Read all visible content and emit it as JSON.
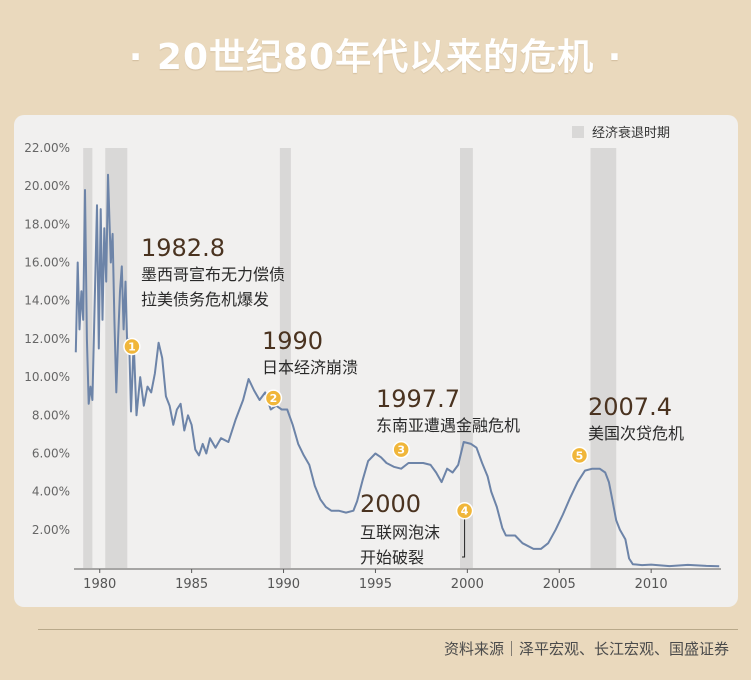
{
  "title": "· 20世纪80年代以来的危机 ·",
  "source": "资料来源｜泽平宏观、长江宏观、国盛证券",
  "colors": {
    "background": "#ead9bd",
    "panel": "#f1f0ef",
    "line": "#6d84a8",
    "recession": "#d9d8d7",
    "marker": "#f0b63a",
    "label": "#4a3320"
  },
  "chart_data": {
    "type": "line",
    "title": "",
    "xlabel": "",
    "ylabel": "",
    "xlim": [
      1978.6,
      2013.8
    ],
    "ylim": [
      0,
      22
    ],
    "y_ticks": [
      "2.00%",
      "4.00%",
      "6.00%",
      "8.00%",
      "10.00%",
      "12.00%",
      "14.00%",
      "16.00%",
      "18.00%",
      "20.00%",
      "22.00%"
    ],
    "x_ticks": [
      "1980",
      "1985",
      "1990",
      "1995",
      "2000",
      "2005",
      "2010"
    ],
    "grid": false,
    "legend": {
      "label": "经济衰退时期",
      "position": "top-right"
    },
    "recessions": [
      [
        1979.1,
        1979.6
      ],
      [
        1980.3,
        1981.5
      ],
      [
        1989.8,
        1990.4
      ],
      [
        1999.6,
        2000.3
      ],
      [
        2006.7,
        2008.1
      ]
    ],
    "series": [
      {
        "values": [
          [
            1978.7,
            11.3
          ],
          [
            1978.8,
            16.0
          ],
          [
            1978.9,
            12.5
          ],
          [
            1979.0,
            14.5
          ],
          [
            1979.1,
            13.0
          ],
          [
            1979.2,
            19.8
          ],
          [
            1979.3,
            12.0
          ],
          [
            1979.4,
            8.6
          ],
          [
            1979.5,
            9.5
          ],
          [
            1979.6,
            8.8
          ],
          [
            1979.75,
            14.8
          ],
          [
            1979.85,
            19.0
          ],
          [
            1979.95,
            11.5
          ],
          [
            1980.05,
            18.8
          ],
          [
            1980.15,
            13.0
          ],
          [
            1980.25,
            17.8
          ],
          [
            1980.35,
            15.0
          ],
          [
            1980.45,
            20.6
          ],
          [
            1980.6,
            16.0
          ],
          [
            1980.7,
            17.5
          ],
          [
            1980.8,
            13.0
          ],
          [
            1980.9,
            9.2
          ],
          [
            1981.0,
            12.0
          ],
          [
            1981.1,
            14.5
          ],
          [
            1981.2,
            15.8
          ],
          [
            1981.3,
            12.5
          ],
          [
            1981.4,
            15.0
          ],
          [
            1981.5,
            11.5
          ],
          [
            1981.6,
            12.0
          ],
          [
            1981.7,
            8.2
          ],
          [
            1981.85,
            11.8
          ],
          [
            1982.0,
            8.0
          ],
          [
            1982.2,
            10.0
          ],
          [
            1982.4,
            8.5
          ],
          [
            1982.6,
            9.5
          ],
          [
            1982.8,
            9.2
          ],
          [
            1983.0,
            10.2
          ],
          [
            1983.2,
            11.8
          ],
          [
            1983.4,
            11.0
          ],
          [
            1983.6,
            9.0
          ],
          [
            1983.8,
            8.5
          ],
          [
            1984.0,
            7.5
          ],
          [
            1984.2,
            8.3
          ],
          [
            1984.4,
            8.6
          ],
          [
            1984.6,
            7.2
          ],
          [
            1984.8,
            8.0
          ],
          [
            1985.0,
            7.5
          ],
          [
            1985.2,
            6.2
          ],
          [
            1985.4,
            5.9
          ],
          [
            1985.6,
            6.5
          ],
          [
            1985.8,
            6.0
          ],
          [
            1986.0,
            6.8
          ],
          [
            1986.3,
            6.3
          ],
          [
            1986.6,
            6.8
          ],
          [
            1987.0,
            6.6
          ],
          [
            1987.4,
            7.8
          ],
          [
            1987.8,
            8.8
          ],
          [
            1988.1,
            9.9
          ],
          [
            1988.4,
            9.3
          ],
          [
            1988.7,
            8.8
          ],
          [
            1989.0,
            9.2
          ],
          [
            1989.3,
            8.3
          ],
          [
            1989.6,
            8.5
          ],
          [
            1989.9,
            8.3
          ],
          [
            1990.2,
            8.3
          ],
          [
            1990.5,
            7.5
          ],
          [
            1990.8,
            6.5
          ],
          [
            1991.1,
            5.9
          ],
          [
            1991.4,
            5.4
          ],
          [
            1991.7,
            4.3
          ],
          [
            1992.0,
            3.6
          ],
          [
            1992.3,
            3.2
          ],
          [
            1992.6,
            3.0
          ],
          [
            1993.0,
            3.0
          ],
          [
            1993.4,
            2.9
          ],
          [
            1993.8,
            3.0
          ],
          [
            1994.0,
            3.5
          ],
          [
            1994.3,
            4.6
          ],
          [
            1994.6,
            5.6
          ],
          [
            1995.0,
            6.0
          ],
          [
            1995.3,
            5.8
          ],
          [
            1995.6,
            5.5
          ],
          [
            1996.0,
            5.3
          ],
          [
            1996.4,
            5.2
          ],
          [
            1996.8,
            5.5
          ],
          [
            1997.2,
            5.5
          ],
          [
            1997.6,
            5.5
          ],
          [
            1998.0,
            5.4
          ],
          [
            1998.3,
            5.0
          ],
          [
            1998.6,
            4.5
          ],
          [
            1998.9,
            5.2
          ],
          [
            1999.2,
            5.0
          ],
          [
            1999.5,
            5.4
          ],
          [
            1999.8,
            6.6
          ],
          [
            2000.2,
            6.5
          ],
          [
            2000.5,
            6.3
          ],
          [
            2000.8,
            5.5
          ],
          [
            2001.1,
            4.8
          ],
          [
            2001.3,
            4.0
          ],
          [
            2001.6,
            3.2
          ],
          [
            2001.9,
            2.1
          ],
          [
            2002.1,
            1.7
          ],
          [
            2002.6,
            1.7
          ],
          [
            2003.0,
            1.3
          ],
          [
            2003.6,
            1.0
          ],
          [
            2004.0,
            1.0
          ],
          [
            2004.4,
            1.3
          ],
          [
            2004.8,
            2.0
          ],
          [
            2005.2,
            2.8
          ],
          [
            2005.6,
            3.7
          ],
          [
            2006.0,
            4.5
          ],
          [
            2006.4,
            5.1
          ],
          [
            2006.8,
            5.2
          ],
          [
            2007.2,
            5.2
          ],
          [
            2007.5,
            5.0
          ],
          [
            2007.7,
            4.5
          ],
          [
            2007.9,
            3.5
          ],
          [
            2008.1,
            2.5
          ],
          [
            2008.3,
            2.0
          ],
          [
            2008.6,
            1.5
          ],
          [
            2008.8,
            0.5
          ],
          [
            2009.0,
            0.2
          ],
          [
            2009.5,
            0.15
          ],
          [
            2010.0,
            0.18
          ],
          [
            2011.0,
            0.1
          ],
          [
            2012.0,
            0.16
          ],
          [
            2013.0,
            0.11
          ],
          [
            2013.7,
            0.09
          ]
        ]
      }
    ],
    "events": [
      {
        "num": "1",
        "x": 1981.75,
        "y": 11.6,
        "year": "1982.8",
        "lines": [
          "墨西哥宣布无力偿债",
          "拉美债务危机爆发"
        ]
      },
      {
        "num": "2",
        "x": 1989.45,
        "y": 8.9,
        "year": "1990",
        "lines": [
          "日本经济崩溃"
        ]
      },
      {
        "num": "3",
        "x": 1996.4,
        "y": 6.2,
        "year": "1997.7",
        "lines": [
          "东南亚遭遇金融危机"
        ]
      },
      {
        "num": "4",
        "x": 1999.85,
        "y": 3.0,
        "year": "2000",
        "lines": [
          "互联网泡沫",
          "开始破裂"
        ]
      },
      {
        "num": "5",
        "x": 2006.1,
        "y": 5.9,
        "year": "2007.4",
        "lines": [
          "美国次贷危机"
        ]
      }
    ]
  }
}
